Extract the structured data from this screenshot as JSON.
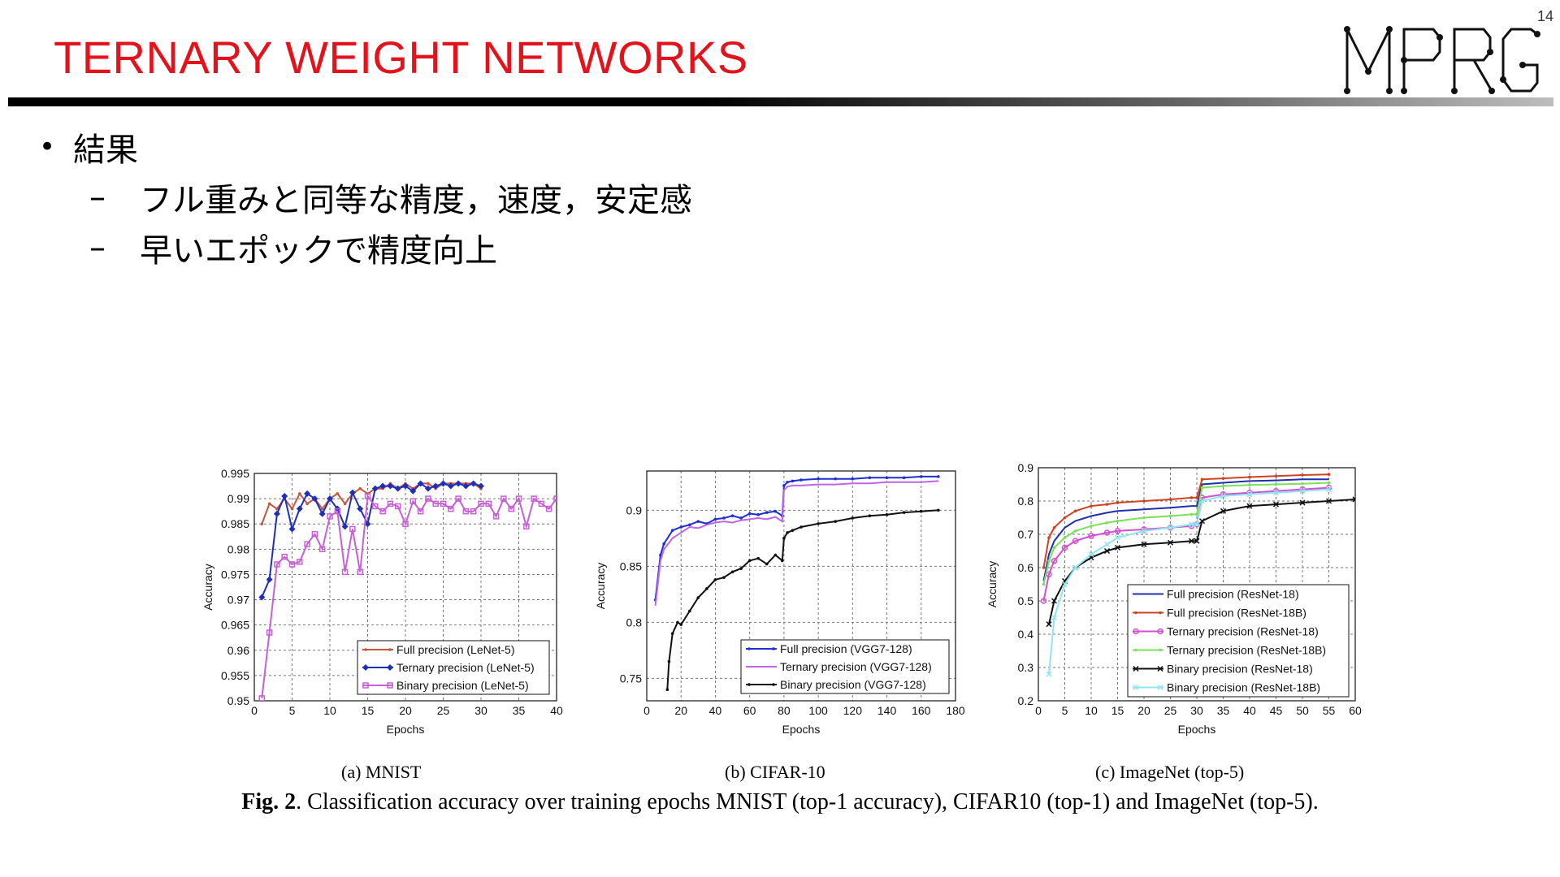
{
  "slide": {
    "page_number": "14",
    "title": "TERNARY WEIGHT NETWORKS",
    "logo_text": "MPRG",
    "bullets": [
      {
        "text": "結果",
        "sub": [
          "フル重みと同等な精度，速度，安定感",
          "早いエポックで精度向上"
        ]
      }
    ]
  },
  "figure": {
    "subcaptions": [
      "(a) MNIST",
      "(b) CIFAR-10",
      "(c) ImageNet (top-5)"
    ],
    "caption_label": "Fig. 2",
    "caption_text": ". Classification accuracy over training epochs MNIST (top-1 accuracy), CIFAR10 (top-1) and ImageNet (top-5)."
  },
  "chart_data": [
    {
      "type": "line",
      "xlabel": "Epochs",
      "ylabel": "Accuracy",
      "xlim": [
        0,
        40
      ],
      "ylim": [
        0.95,
        0.995
      ],
      "xticks": [
        0,
        5,
        10,
        15,
        20,
        25,
        30,
        35,
        40
      ],
      "yticks": [
        0.95,
        0.955,
        0.96,
        0.965,
        0.97,
        0.975,
        0.98,
        0.985,
        0.99,
        0.995
      ],
      "grid": true,
      "legend_position": "bottom-right",
      "series": [
        {
          "name": "Full precision (LeNet-5)",
          "color": "#c8553d",
          "marker": "dot",
          "x": [
            1,
            2,
            3,
            4,
            5,
            6,
            7,
            8,
            9,
            10,
            11,
            12,
            13,
            14,
            15,
            16,
            17,
            18,
            19,
            20,
            21,
            22,
            23,
            24,
            25,
            26,
            27,
            28,
            29,
            30
          ],
          "y": [
            0.985,
            0.989,
            0.988,
            0.99,
            0.988,
            0.991,
            0.989,
            0.99,
            0.988,
            0.99,
            0.991,
            0.989,
            0.991,
            0.992,
            0.991,
            0.992,
            0.992,
            0.993,
            0.992,
            0.993,
            0.992,
            0.993,
            0.993,
            0.992,
            0.993,
            0.993,
            0.993,
            0.993,
            0.993,
            0.992
          ]
        },
        {
          "name": "Ternary precision (LeNet-5)",
          "color": "#1f2fb8",
          "marker": "diamond",
          "x": [
            1,
            2,
            3,
            4,
            5,
            6,
            7,
            8,
            9,
            10,
            11,
            12,
            13,
            14,
            15,
            16,
            17,
            18,
            19,
            20,
            21,
            22,
            23,
            24,
            25,
            26,
            27,
            28,
            29,
            30
          ],
          "y": [
            0.9705,
            0.974,
            0.987,
            0.9905,
            0.984,
            0.988,
            0.991,
            0.99,
            0.987,
            0.99,
            0.988,
            0.9845,
            0.9912,
            0.988,
            0.985,
            0.992,
            0.9925,
            0.9925,
            0.992,
            0.9925,
            0.9915,
            0.993,
            0.992,
            0.9925,
            0.993,
            0.9925,
            0.993,
            0.9925,
            0.993,
            0.9925
          ]
        },
        {
          "name": "Binary precision (LeNet-5)",
          "color": "#c95fd6",
          "marker": "square",
          "x": [
            1,
            2,
            3,
            4,
            5,
            6,
            7,
            8,
            9,
            10,
            11,
            12,
            13,
            14,
            15,
            16,
            17,
            18,
            19,
            20,
            21,
            22,
            23,
            24,
            25,
            26,
            27,
            28,
            29,
            30,
            31,
            32,
            33,
            34,
            35,
            36,
            37,
            38,
            39,
            40
          ],
          "y": [
            0.9505,
            0.9635,
            0.977,
            0.9785,
            0.977,
            0.9775,
            0.981,
            0.983,
            0.98,
            0.9865,
            0.9875,
            0.9755,
            0.984,
            0.9755,
            0.9905,
            0.9885,
            0.9875,
            0.989,
            0.9885,
            0.985,
            0.9895,
            0.9875,
            0.99,
            0.989,
            0.989,
            0.988,
            0.99,
            0.9875,
            0.9875,
            0.989,
            0.989,
            0.9865,
            0.99,
            0.988,
            0.99,
            0.9845,
            0.99,
            0.989,
            0.988,
            0.99
          ]
        }
      ]
    },
    {
      "type": "line",
      "xlabel": "Epochs",
      "ylabel": "Accuracy",
      "xlim": [
        0,
        180
      ],
      "ylim": [
        0.73,
        0.935
      ],
      "xticks": [
        0,
        20,
        40,
        60,
        80,
        100,
        120,
        140,
        160,
        180
      ],
      "yticks": [
        0.75,
        0.8,
        0.85,
        0.9
      ],
      "grid": true,
      "legend_position": "bottom-right",
      "series": [
        {
          "name": "Full precision (VGG7-128)",
          "color": "#1f2fd0",
          "marker": "dot",
          "x": [
            5,
            8,
            10,
            15,
            20,
            25,
            30,
            35,
            40,
            45,
            50,
            55,
            60,
            65,
            70,
            75,
            79,
            80,
            82,
            85,
            90,
            100,
            110,
            120,
            130,
            140,
            150,
            160,
            170
          ],
          "y": [
            0.82,
            0.86,
            0.87,
            0.882,
            0.885,
            0.887,
            0.89,
            0.888,
            0.892,
            0.893,
            0.895,
            0.893,
            0.897,
            0.896,
            0.898,
            0.899,
            0.895,
            0.922,
            0.925,
            0.926,
            0.927,
            0.928,
            0.928,
            0.928,
            0.929,
            0.929,
            0.929,
            0.93,
            0.93
          ]
        },
        {
          "name": "Ternary precision (VGG7-128)",
          "color": "#c065e6",
          "marker": "none",
          "x": [
            5,
            8,
            10,
            15,
            20,
            25,
            30,
            35,
            40,
            45,
            50,
            55,
            60,
            65,
            70,
            75,
            79,
            80,
            82,
            85,
            90,
            100,
            110,
            120,
            130,
            140,
            150,
            160,
            170
          ],
          "y": [
            0.815,
            0.855,
            0.865,
            0.875,
            0.88,
            0.885,
            0.884,
            0.887,
            0.889,
            0.89,
            0.889,
            0.891,
            0.892,
            0.893,
            0.892,
            0.894,
            0.89,
            0.918,
            0.921,
            0.922,
            0.922,
            0.923,
            0.923,
            0.924,
            0.924,
            0.925,
            0.925,
            0.925,
            0.926
          ]
        },
        {
          "name": "Binary precision (VGG7-128)",
          "color": "#111111",
          "marker": "dot",
          "x": [
            12,
            13,
            15,
            18,
            20,
            25,
            30,
            35,
            40,
            45,
            50,
            55,
            60,
            65,
            70,
            75,
            79,
            80,
            82,
            85,
            90,
            100,
            110,
            120,
            130,
            140,
            150,
            160,
            170
          ],
          "y": [
            0.74,
            0.765,
            0.79,
            0.8,
            0.798,
            0.81,
            0.822,
            0.83,
            0.838,
            0.84,
            0.845,
            0.848,
            0.855,
            0.857,
            0.852,
            0.86,
            0.855,
            0.875,
            0.88,
            0.882,
            0.885,
            0.888,
            0.89,
            0.893,
            0.895,
            0.896,
            0.898,
            0.899,
            0.9
          ]
        }
      ]
    },
    {
      "type": "line",
      "xlabel": "Epochs",
      "ylabel": "Accuracy",
      "xlim": [
        0,
        60
      ],
      "ylim": [
        0.2,
        0.9
      ],
      "xticks": [
        0,
        5,
        10,
        15,
        20,
        25,
        30,
        35,
        40,
        45,
        50,
        55,
        60
      ],
      "yticks": [
        0.2,
        0.3,
        0.4,
        0.5,
        0.6,
        0.7,
        0.8,
        0.9
      ],
      "grid": true,
      "legend_position": "bottom-right",
      "series": [
        {
          "name": "Full precision (ResNet-18)",
          "color": "#1f2fb0",
          "marker": "none",
          "x": [
            1,
            2,
            3,
            5,
            7,
            10,
            13,
            15,
            20,
            25,
            29,
            30,
            31,
            35,
            40,
            45,
            50,
            55
          ],
          "y": [
            0.56,
            0.64,
            0.68,
            0.72,
            0.74,
            0.755,
            0.765,
            0.77,
            0.775,
            0.78,
            0.785,
            0.785,
            0.85,
            0.855,
            0.86,
            0.862,
            0.865,
            0.865
          ]
        },
        {
          "name": "Full precision (ResNet-18B)",
          "color": "#cc4422",
          "marker": "dot",
          "x": [
            1,
            2,
            3,
            5,
            7,
            10,
            13,
            15,
            20,
            25,
            29,
            30,
            31,
            35,
            40,
            45,
            50,
            55
          ],
          "y": [
            0.6,
            0.69,
            0.72,
            0.75,
            0.77,
            0.785,
            0.79,
            0.795,
            0.8,
            0.805,
            0.81,
            0.81,
            0.865,
            0.868,
            0.872,
            0.875,
            0.878,
            0.88
          ]
        },
        {
          "name": "Ternary precision (ResNet-18)",
          "color": "#d24fd2",
          "marker": "circle",
          "x": [
            1,
            2,
            3,
            5,
            7,
            10,
            13,
            15,
            20,
            25,
            29,
            30,
            31,
            35,
            40,
            45,
            50,
            55
          ],
          "y": [
            0.5,
            0.58,
            0.62,
            0.66,
            0.68,
            0.695,
            0.705,
            0.71,
            0.715,
            0.72,
            0.725,
            0.73,
            0.81,
            0.82,
            0.825,
            0.83,
            0.835,
            0.84
          ]
        },
        {
          "name": "Ternary precision (ResNet-18B)",
          "color": "#7be05a",
          "marker": "dot",
          "x": [
            1,
            2,
            3,
            5,
            7,
            10,
            13,
            15,
            20,
            25,
            29,
            30,
            31,
            35,
            40,
            45,
            50,
            55
          ],
          "y": [
            0.55,
            0.62,
            0.66,
            0.69,
            0.71,
            0.725,
            0.735,
            0.74,
            0.75,
            0.755,
            0.76,
            0.76,
            0.84,
            0.845,
            0.848,
            0.85,
            0.852,
            0.855
          ]
        },
        {
          "name": "Binary precision (ResNet-18)",
          "color": "#111111",
          "marker": "x",
          "x": [
            2,
            3,
            5,
            7,
            10,
            13,
            15,
            20,
            25,
            29,
            30,
            31,
            35,
            40,
            45,
            50,
            55,
            60
          ],
          "y": [
            0.43,
            0.5,
            0.56,
            0.6,
            0.63,
            0.65,
            0.66,
            0.67,
            0.675,
            0.68,
            0.68,
            0.74,
            0.77,
            0.785,
            0.79,
            0.795,
            0.8,
            0.805
          ]
        },
        {
          "name": "Binary precision (ResNet-18B)",
          "color": "#8fe6ef",
          "marker": "x",
          "x": [
            2,
            3,
            5,
            7,
            10,
            13,
            15,
            20,
            25,
            29,
            30,
            31,
            35,
            40,
            45,
            50,
            55
          ],
          "y": [
            0.28,
            0.45,
            0.55,
            0.6,
            0.64,
            0.67,
            0.69,
            0.71,
            0.72,
            0.73,
            0.73,
            0.8,
            0.815,
            0.82,
            0.825,
            0.83,
            0.835
          ]
        }
      ]
    }
  ]
}
